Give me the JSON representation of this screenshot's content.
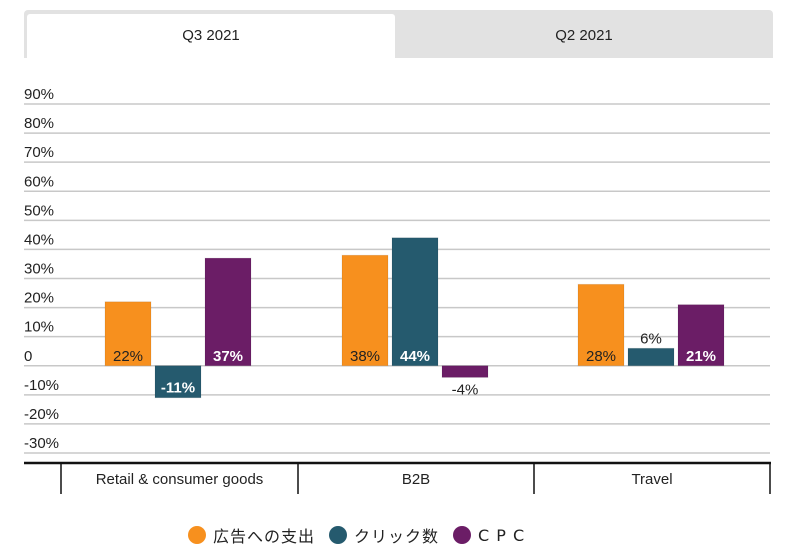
{
  "tabs": [
    {
      "label": "Q3 2021",
      "active": true
    },
    {
      "label": "Q2 2021",
      "active": false
    }
  ],
  "colors": {
    "series": [
      "#f7901e",
      "#255a6e",
      "#6b1d66"
    ],
    "grid": "#c8c8c8",
    "axis": "#111111",
    "label_on_light": "#222222",
    "label_on_dark": "#ffffff"
  },
  "legend": [
    {
      "label": "広告への支出",
      "color_key": 0
    },
    {
      "label": "クリック数",
      "color_key": 1
    },
    {
      "label": "C P C",
      "color_key": 2
    }
  ],
  "chart_data": {
    "type": "bar",
    "title": "",
    "xlabel": "",
    "ylabel": "",
    "categories": [
      "Retail & consumer goods",
      "B2B",
      "Travel"
    ],
    "series": [
      {
        "name": "広告への支出",
        "values": [
          22,
          38,
          28
        ],
        "labels": [
          "22%",
          "38%",
          "28%"
        ]
      },
      {
        "name": "クリック数",
        "values": [
          -11,
          44,
          6
        ],
        "labels": [
          "-11%",
          "44%",
          "6%"
        ]
      },
      {
        "name": "CPC",
        "values": [
          37,
          -4,
          21
        ],
        "labels": [
          "37%",
          "-4%",
          "21%"
        ]
      }
    ],
    "ylim": [
      -30,
      90
    ],
    "yticks": [
      90,
      80,
      70,
      60,
      50,
      40,
      30,
      20,
      10,
      0,
      -10,
      -20,
      -30
    ],
    "ytick_labels": [
      "90%",
      "80%",
      "70%",
      "60%",
      "50%",
      "40%",
      "30%",
      "20%",
      "10%",
      "0",
      "-10%",
      "-20%",
      "-30%"
    ],
    "grid": true,
    "legend_position": "bottom"
  }
}
